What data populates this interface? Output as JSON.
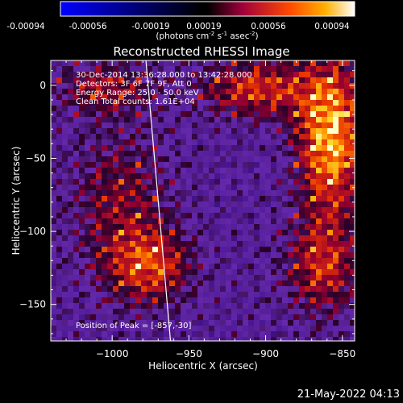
{
  "colorbar": {
    "ticks": [
      "-0.00094",
      "-0.00056",
      "-0.00019",
      "0.00019",
      "0.00056",
      "0.00094"
    ],
    "unit_label": "(photons cm",
    "unit_exp1": "-2",
    "unit_mid": " s",
    "unit_exp2": "-1",
    "unit_mid2": " asec",
    "unit_exp3": "-2",
    "unit_close": ")"
  },
  "info": {
    "line1": "30-Dec-2014 13:36:28.000 to 13:42:28.000",
    "line2": "Detectors: 3F 6F 7F 9F, Att 0",
    "line3": "Energy Range: 25.0 - 50.0 keV",
    "line4": "Clean     Total counts: 1.61E+04",
    "peak": "Position of Peak = [-857,-30]"
  },
  "footer": {
    "date": "21-May-2022 04:13"
  },
  "chart_data": {
    "type": "heatmap",
    "title": "Reconstructed RHESSI Image",
    "xlabel": "Heliocentric X (arcsec)",
    "ylabel": "Heliocentric Y (arcsec)",
    "xlim": [
      -1040,
      -842
    ],
    "ylim": [
      -175,
      17
    ],
    "xticks": [
      -1000,
      -950,
      -900,
      -850
    ],
    "xtick_labels": [
      "−1000",
      "−950",
      "−900",
      "−850"
    ],
    "yticks": [
      0,
      -50,
      -100,
      -150
    ],
    "ytick_labels": [
      "0",
      "−50",
      "−100",
      "−150"
    ],
    "color_range": [
      -0.00094,
      0.00094
    ],
    "limb_line": [
      [
        -978,
        17
      ],
      [
        -962,
        -175
      ]
    ],
    "peak_position": [
      -857,
      -30
    ]
  }
}
